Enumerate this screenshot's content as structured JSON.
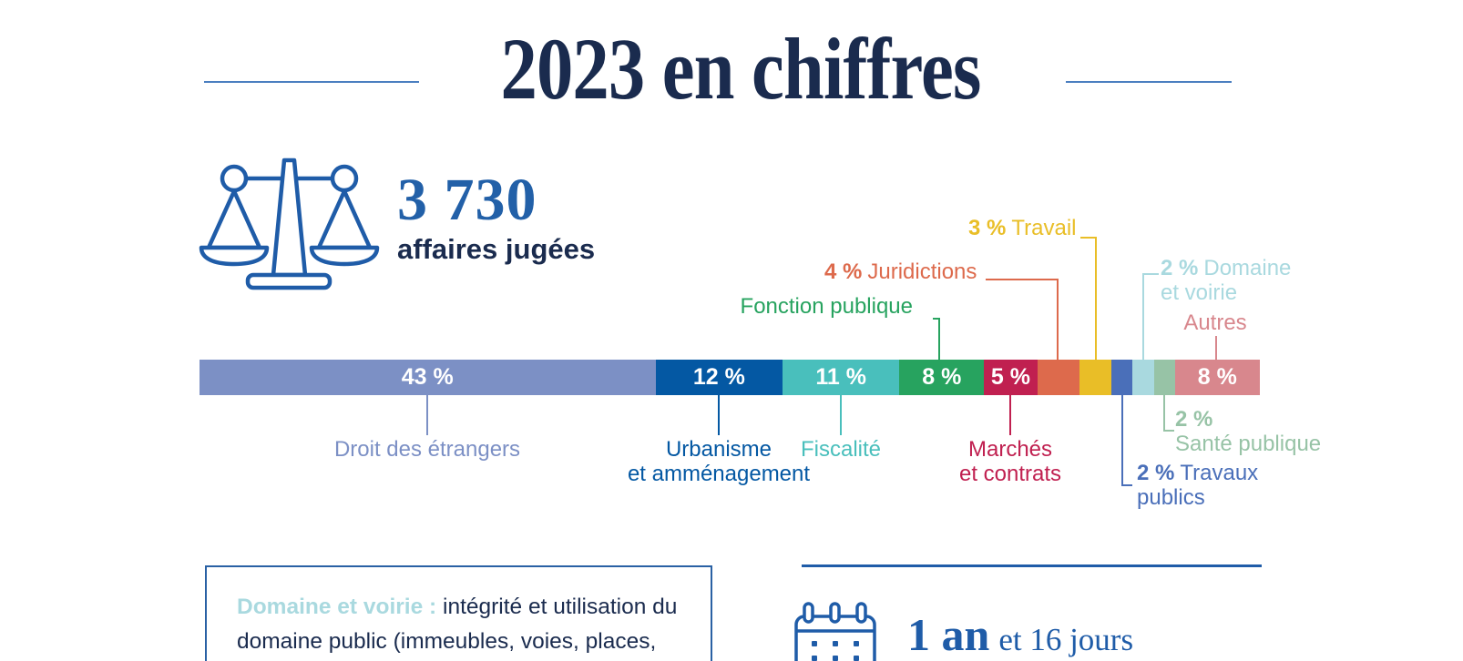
{
  "page": {
    "title": "2023 en chiffres"
  },
  "colors": {
    "navy": "#1a2b4e",
    "blue": "#1f5ca8",
    "stat_blue": "#2260a8",
    "rule_blue": "#4b7fc0",
    "box_border": "#2a61a4"
  },
  "stats": {
    "affaires": {
      "icon": "scales-icon",
      "value": "3 730",
      "label": "affaires jugées"
    },
    "delai": {
      "icon": "calendar-icon",
      "value": "1 an",
      "suffix": "et 16 jours"
    }
  },
  "chart_data": {
    "type": "bar",
    "variant": "stacked-horizontal",
    "unit": "%",
    "total": 100,
    "segments": [
      {
        "label": "Droit des étrangers",
        "pct": 43,
        "pct_label": "43 %",
        "color": "#7c90c5",
        "value_in_bar": true,
        "callout": "below"
      },
      {
        "label": "Urbanisme et amménagement",
        "label_lines": [
          "Urbanisme",
          "et amménagement"
        ],
        "pct": 12,
        "pct_label": "12 %",
        "color": "#0458a3",
        "value_in_bar": true,
        "callout": "below"
      },
      {
        "label": "Fiscalité",
        "pct": 11,
        "pct_label": "11 %",
        "color": "#49bfbc",
        "value_in_bar": true,
        "callout": "below"
      },
      {
        "label": "Fonction publique",
        "pct": 8,
        "pct_label": "8 %",
        "color": "#27a35f",
        "value_in_bar": true,
        "callout": "above"
      },
      {
        "label": "Marchés et contrats",
        "label_lines": [
          "Marchés",
          "et contrats"
        ],
        "pct": 5,
        "pct_label": "5 %",
        "color": "#c02050",
        "value_in_bar": true,
        "callout": "below"
      },
      {
        "label": "Juridictions",
        "pct": 4,
        "pct_label": "4 %",
        "color": "#dd6a4c",
        "value_in_bar": false,
        "callout": "above"
      },
      {
        "label": "Travail",
        "pct": 3,
        "pct_label": "3 %",
        "color": "#e9be27",
        "value_in_bar": false,
        "callout": "above"
      },
      {
        "label": "Travaux publics",
        "label_lines": [
          "Travaux",
          "publics"
        ],
        "pct": 2,
        "pct_label": "2 %",
        "color": "#4a6fb9",
        "value_in_bar": false,
        "callout": "below"
      },
      {
        "label": "Domaine et voirie",
        "label_lines": [
          "Domaine",
          "et voirie"
        ],
        "pct": 2,
        "pct_label": "2 %",
        "color": "#a9d9df",
        "value_in_bar": false,
        "callout": "above"
      },
      {
        "label": "Santé publique",
        "pct": 2,
        "pct_label": "2 %",
        "color": "#97c3a6",
        "value_in_bar": false,
        "callout": "below"
      },
      {
        "label": "Autres",
        "pct": 8,
        "pct_label": "8 %",
        "color": "#d8878d",
        "value_in_bar": true,
        "callout": "above"
      }
    ]
  },
  "info_box": {
    "term": "Domaine et voirie :",
    "definition": "intégrité et utilisation du domaine public (immeubles, voies, places,"
  }
}
